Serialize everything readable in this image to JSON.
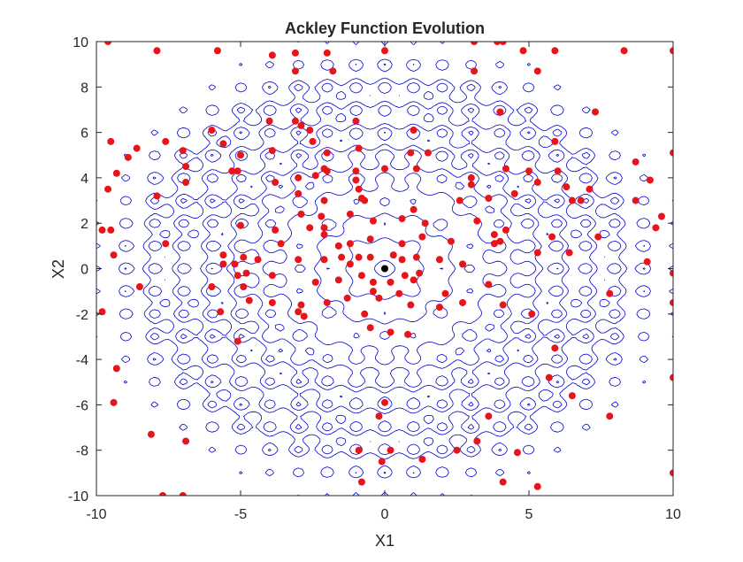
{
  "chart_data": {
    "type": "scatter",
    "title": "Ackley Function Evolution",
    "xlabel": "X1",
    "ylabel": "X2",
    "xlim": [
      -10,
      10
    ],
    "ylim": [
      -10,
      10
    ],
    "xticks": [
      -10,
      -5,
      0,
      5,
      10
    ],
    "yticks": [
      -10,
      -8,
      -6,
      -4,
      -2,
      0,
      2,
      4,
      6,
      8,
      10
    ],
    "xtick_labels": [
      "-10",
      "-5",
      "0",
      "5",
      "10"
    ],
    "ytick_labels": [
      "-10",
      "-8",
      "-6",
      "-4",
      "-2",
      "0",
      "2",
      "4",
      "6",
      "8",
      "10"
    ],
    "grid": false,
    "background": "contour plot of the Ackley function",
    "contour_color": "#0000cc",
    "series": [
      {
        "marker_color": "#e8141c",
        "points": [
          [
            -9.6,
            10
          ],
          [
            -7.9,
            9.6
          ],
          [
            -5.8,
            9.6
          ],
          [
            -3.9,
            9.4
          ],
          [
            -3.1,
            9.5
          ],
          [
            -2.0,
            9.5
          ],
          [
            0.0,
            9.6
          ],
          [
            3.1,
            10
          ],
          [
            3.9,
            10
          ],
          [
            4.1,
            10
          ],
          [
            4.8,
            9.6
          ],
          [
            5.9,
            9.6
          ],
          [
            8.3,
            9.6
          ],
          [
            10,
            9.6
          ],
          [
            -3.1,
            8.7
          ],
          [
            -1.8,
            8.7
          ],
          [
            3.1,
            8.7
          ],
          [
            5.3,
            8.7
          ],
          [
            -4.0,
            6.5
          ],
          [
            -3.1,
            6.5
          ],
          [
            -2.9,
            6.3
          ],
          [
            -2.6,
            6.1
          ],
          [
            -2.5,
            5.6
          ],
          [
            -1.0,
            6.5
          ],
          [
            1.0,
            6.1
          ],
          [
            4.0,
            6.9
          ],
          [
            7.3,
            6.9
          ],
          [
            -9.5,
            5.6
          ],
          [
            -8.6,
            5.3
          ],
          [
            -7.6,
            5.6
          ],
          [
            -6.0,
            6.1
          ],
          [
            -5.6,
            5.5
          ],
          [
            -5.0,
            5.0
          ],
          [
            -3.9,
            5.2
          ],
          [
            -2.0,
            5.1
          ],
          [
            -0.9,
            5.3
          ],
          [
            0.9,
            5.1
          ],
          [
            1.5,
            5.1
          ],
          [
            5.9,
            5.6
          ],
          [
            -8.9,
            4.9
          ],
          [
            -7.0,
            5.2
          ],
          [
            -6.9,
            4.5
          ],
          [
            -5.1,
            4.3
          ],
          [
            -3.8,
            3.8
          ],
          [
            -3.0,
            4.0
          ],
          [
            -2.0,
            4.3
          ],
          [
            -1.0,
            4.3
          ],
          [
            0.0,
            4.4
          ],
          [
            1.1,
            4.4
          ],
          [
            3.0,
            4.0
          ],
          [
            4.2,
            4.4
          ],
          [
            5.0,
            4.3
          ],
          [
            6.0,
            4.3
          ],
          [
            8.7,
            4.7
          ],
          [
            10,
            5.1
          ],
          [
            -9.3,
            4.2
          ],
          [
            -9.6,
            3.5
          ],
          [
            -6.9,
            3.8
          ],
          [
            -5.3,
            4.3
          ],
          [
            -2.4,
            4.1
          ],
          [
            -2.1,
            4.4
          ],
          [
            -1.0,
            3.9
          ],
          [
            -0.9,
            3.5
          ],
          [
            3.0,
            3.7
          ],
          [
            3.6,
            3.1
          ],
          [
            4.5,
            3.3
          ],
          [
            5.3,
            3.8
          ],
          [
            6.3,
            3.6
          ],
          [
            7.1,
            3.5
          ],
          [
            9.2,
            3.9
          ],
          [
            -7.9,
            3.2
          ],
          [
            -3.0,
            3.3
          ],
          [
            -2.1,
            3.0
          ],
          [
            -0.8,
            3.1
          ],
          [
            -0.7,
            3.0
          ],
          [
            1.0,
            2.6
          ],
          [
            2.6,
            3.0
          ],
          [
            6.5,
            3.0
          ],
          [
            6.8,
            3.0
          ],
          [
            8.7,
            3.0
          ],
          [
            -9.8,
            1.7
          ],
          [
            -9.5,
            1.7
          ],
          [
            -7.6,
            1.1
          ],
          [
            -5.0,
            1.9
          ],
          [
            -3.8,
            1.7
          ],
          [
            -2.9,
            2.4
          ],
          [
            -2.2,
            2.3
          ],
          [
            -2.1,
            1.8
          ],
          [
            -1.2,
            2.4
          ],
          [
            -0.4,
            2.1
          ],
          [
            0.6,
            2.2
          ],
          [
            1.4,
            2.0
          ],
          [
            3.2,
            2.1
          ],
          [
            3.8,
            1.5
          ],
          [
            4.2,
            1.7
          ],
          [
            5.8,
            1.4
          ],
          [
            7.4,
            1.4
          ],
          [
            9.6,
            2.3
          ],
          [
            9.4,
            1.8
          ],
          [
            -3.6,
            1.1
          ],
          [
            -2.6,
            1.8
          ],
          [
            -2.1,
            1.5
          ],
          [
            -1.6,
            1.0
          ],
          [
            -1.2,
            1.1
          ],
          [
            -0.5,
            1.3
          ],
          [
            0.6,
            1.1
          ],
          [
            1.3,
            1.4
          ],
          [
            2.3,
            1.2
          ],
          [
            3.8,
            1.1
          ],
          [
            4.0,
            1.2
          ],
          [
            5.3,
            0.7
          ],
          [
            6.4,
            0.7
          ],
          [
            9.1,
            0.3
          ],
          [
            -9.4,
            0.6
          ],
          [
            -5.6,
            0.6
          ],
          [
            -5.6,
            0.2
          ],
          [
            -5.2,
            0.2
          ],
          [
            -4.9,
            0.5
          ],
          [
            -4.4,
            0.4
          ],
          [
            -3.0,
            0.4
          ],
          [
            -2.1,
            0.4
          ],
          [
            -1.5,
            0.5
          ],
          [
            -1.2,
            0.2
          ],
          [
            -0.9,
            0.5
          ],
          [
            -0.5,
            0.5
          ],
          [
            0.3,
            0.6
          ],
          [
            0.6,
            0.4
          ],
          [
            1.1,
            0.5
          ],
          [
            1.9,
            0.4
          ],
          [
            2.7,
            0.2
          ],
          [
            10,
            -0.2
          ],
          [
            -5.1,
            -0.3
          ],
          [
            -4.9,
            -0.8
          ],
          [
            -4.8,
            -0.2
          ],
          [
            -3.9,
            -0.3
          ],
          [
            -2.4,
            -0.6
          ],
          [
            -1.6,
            -0.5
          ],
          [
            -0.8,
            -0.3
          ],
          [
            -0.4,
            -0.6
          ],
          [
            0.2,
            -0.6
          ],
          [
            0.7,
            -0.3
          ],
          [
            1.0,
            -0.5
          ],
          [
            1.2,
            -0.2
          ],
          [
            2.1,
            -1.1
          ],
          [
            3.6,
            -0.7
          ],
          [
            7.8,
            -1.1
          ],
          [
            -8.5,
            -0.8
          ],
          [
            -6.0,
            -0.8
          ],
          [
            -4.7,
            -1.4
          ],
          [
            -3.9,
            -1.5
          ],
          [
            -2.9,
            -1.6
          ],
          [
            -2.0,
            -1.5
          ],
          [
            -1.3,
            -1.3
          ],
          [
            -0.4,
            -1.0
          ],
          [
            -0.2,
            -1.3
          ],
          [
            0.5,
            -1.1
          ],
          [
            0.9,
            -1.6
          ],
          [
            1.9,
            -1.7
          ],
          [
            2.7,
            -1.5
          ],
          [
            4.1,
            -1.6
          ],
          [
            10,
            -1.5
          ],
          [
            -9.8,
            -1.9
          ],
          [
            -5.7,
            -1.9
          ],
          [
            -3.0,
            -1.9
          ],
          [
            -2.8,
            -2.1
          ],
          [
            -0.7,
            -2.0
          ],
          [
            -0.5,
            -2.6
          ],
          [
            0.2,
            -2.8
          ],
          [
            0.8,
            -2.9
          ],
          [
            5.1,
            -2.0
          ],
          [
            -5.1,
            -3.2
          ],
          [
            -9.3,
            -4.4
          ],
          [
            5.9,
            -3.5
          ],
          [
            10,
            -4.8
          ],
          [
            5.7,
            -4.8
          ],
          [
            -9.4,
            -5.9
          ],
          [
            0.0,
            -5.9
          ],
          [
            3.6,
            -6.5
          ],
          [
            -0.2,
            -6.5
          ],
          [
            6.5,
            -5.6
          ],
          [
            7.8,
            -6.5
          ],
          [
            -8.1,
            -7.3
          ],
          [
            -6.9,
            -7.6
          ],
          [
            -0.9,
            -8.0
          ],
          [
            0.2,
            -8.0
          ],
          [
            3.2,
            -7.6
          ],
          [
            4.6,
            -8.1
          ],
          [
            -0.8,
            -9.4
          ],
          [
            -0.1,
            -8.5
          ],
          [
            1.3,
            -8.4
          ],
          [
            2.5,
            -8.0
          ],
          [
            4.1,
            -9.4
          ],
          [
            5.3,
            -9.6
          ],
          [
            10,
            -9.0
          ],
          [
            -7.7,
            -10
          ],
          [
            -7.0,
            -10
          ]
        ]
      },
      {
        "marker_color": "#000000",
        "points": [
          [
            0,
            0
          ]
        ]
      }
    ]
  }
}
